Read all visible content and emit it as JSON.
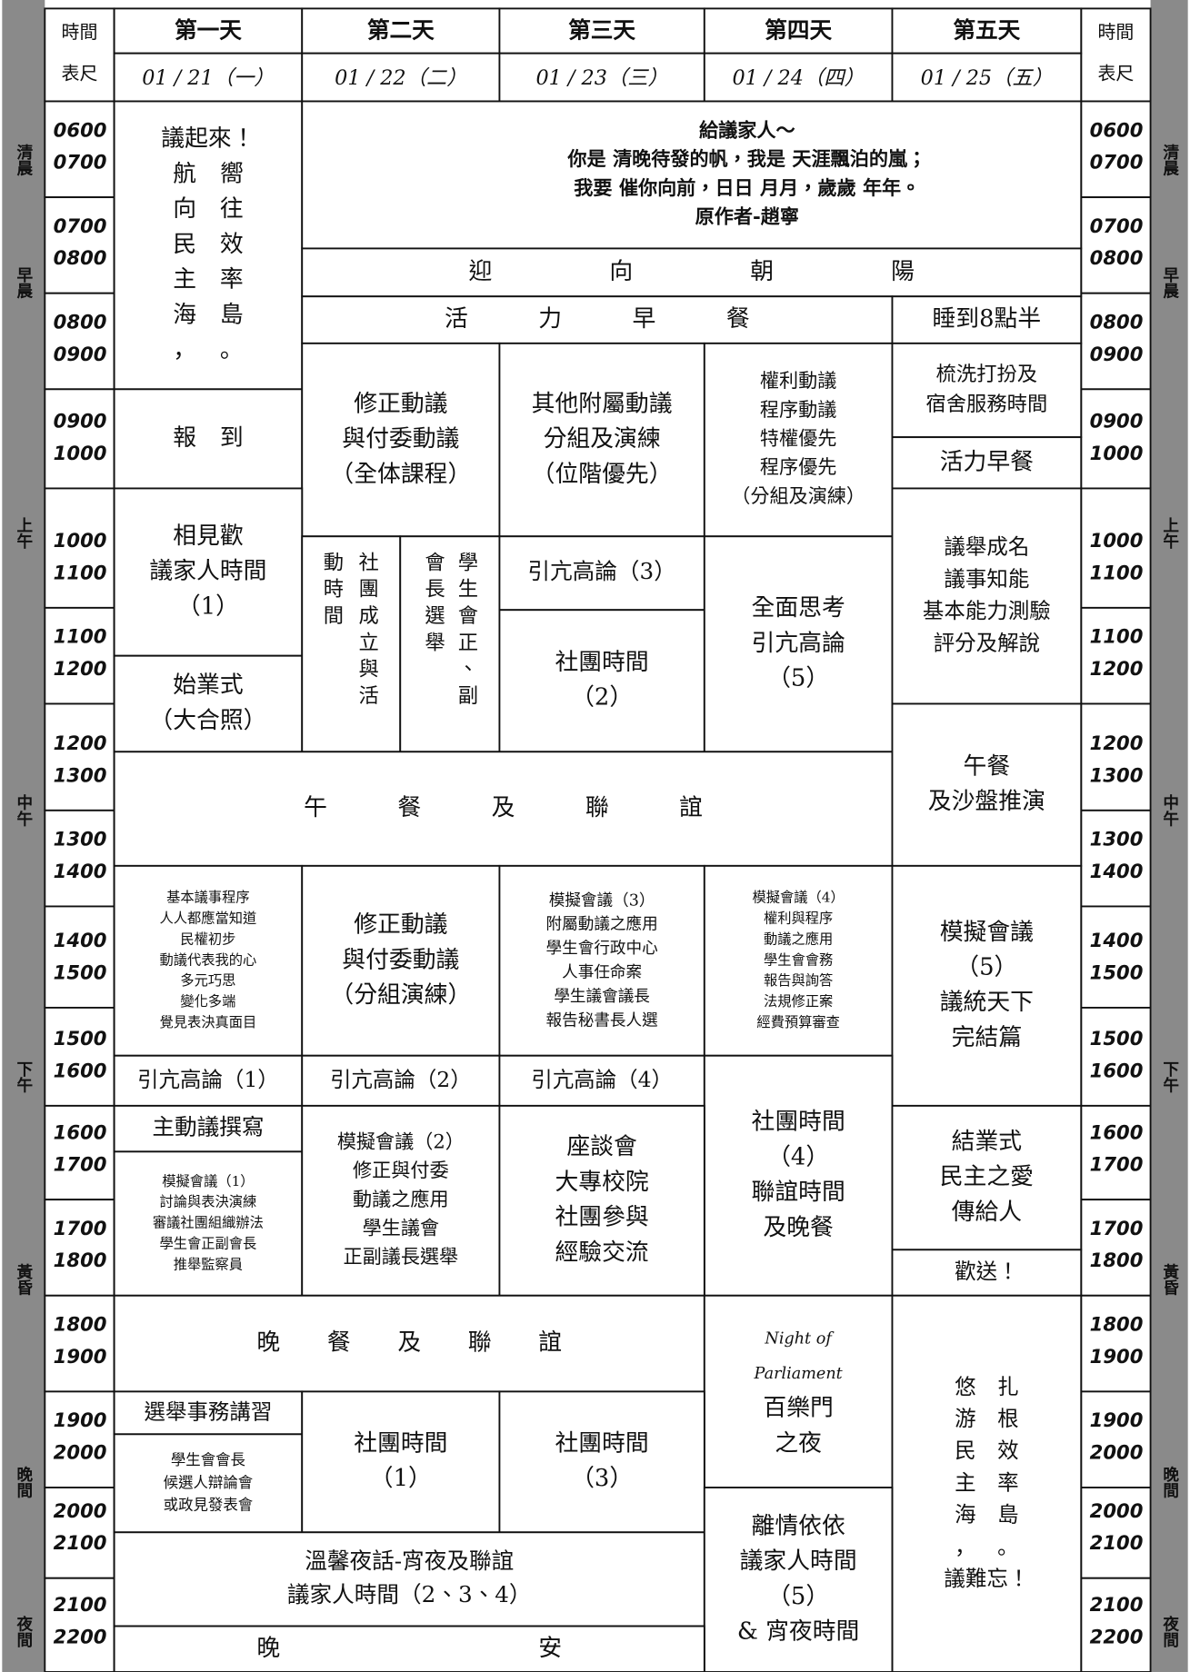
{
  "header": {
    "time_label": [
      "時間",
      "表尺"
    ],
    "days": [
      {
        "name": "第一天",
        "date": "01 / 21（一）"
      },
      {
        "name": "第二天",
        "date": "01 / 22（二）"
      },
      {
        "name": "第三天",
        "date": "01 / 23（三）"
      },
      {
        "name": "第四天",
        "date": "01 / 24（四）"
      },
      {
        "name": "第五天",
        "date": "01 / 25（五）"
      }
    ]
  },
  "time_rows": [
    [
      "0600",
      "0700"
    ],
    [
      "0700",
      "0800"
    ],
    [
      "0800",
      "0900"
    ],
    [
      "0900",
      "1000"
    ],
    [
      "1000",
      "1100"
    ],
    [
      "1100",
      "1200"
    ],
    [
      "1200",
      "1300"
    ],
    [
      "1300",
      "1400"
    ],
    [
      "1400",
      "1500"
    ],
    [
      "1500",
      "1600"
    ],
    [
      "1600",
      "1700"
    ],
    [
      "1700",
      "1800"
    ],
    [
      "1800",
      "1900"
    ],
    [
      "1900",
      "2000"
    ],
    [
      "2000",
      "2100"
    ],
    [
      "2100",
      "2200"
    ]
  ],
  "periods": [
    "清晨",
    "早晨",
    "上午",
    "中午",
    "下午",
    "黃昏",
    "晚間",
    "夜間"
  ],
  "cells": [
    {
      "lines": [
        "議起來！",
        "航　嚮",
        "向　往",
        "民　效",
        "主　率",
        "海　島",
        "，　。"
      ]
    },
    {
      "lines": [
        "給議家人～",
        "你是 清晚待發的帆，我是 天涯飄泊的嵐；",
        "我要 催你向前，日日 月月，歲歲 年年。",
        "原作者-趙寧"
      ]
    },
    {
      "lines": [
        "迎　　　　　向　　　　　朝　　　　　陽"
      ]
    },
    {
      "lines": [
        "活　　　力　　　早　　　餐"
      ]
    },
    {
      "lines": [
        "睡到8點半"
      ]
    },
    {
      "lines": [
        "報　到"
      ]
    },
    {
      "lines": [
        "修正動議",
        "與付委動議",
        "（全体課程）"
      ]
    },
    {
      "lines": [
        "其他附屬動議",
        "分組及演練",
        "（位階優先）"
      ]
    },
    {
      "lines": [
        "權利動議",
        "程序動議",
        "特權優先",
        "程序優先",
        "（分組及演練）"
      ]
    },
    {
      "lines": [
        "梳洗打扮及",
        "宿舍服務時間"
      ]
    },
    {
      "lines": [
        "活力早餐"
      ]
    },
    {
      "lines": [
        "相見歡",
        "議家人時間",
        "（1）"
      ]
    },
    {
      "lines": [
        "始業式",
        "（大合照）"
      ]
    },
    {
      "lines": [
        "社團成立與活",
        "動時間"
      ]
    },
    {
      "lines": [
        "學生會正、副",
        "會長選舉"
      ]
    },
    {
      "lines": [
        "引亢高論（3）"
      ]
    },
    {
      "lines": [
        "社團時間",
        "（2）"
      ]
    },
    {
      "lines": [
        "全面思考",
        "引亢高論",
        "（5）"
      ]
    },
    {
      "lines": [
        "議舉成名",
        "議事知能",
        "基本能力測驗",
        "評分及解說"
      ]
    },
    {
      "lines": [
        "午　　　餐　　　及　　　聯　　　誼"
      ]
    },
    {
      "lines": [
        "午餐",
        "及沙盤推演"
      ]
    },
    {
      "lines": [
        "基本議事程序",
        "人人都應當知道",
        "民權初步",
        "動議代表我的心",
        "多元巧思",
        "變化多端",
        "覺見表決真面目"
      ]
    },
    {
      "lines": [
        "修正動議",
        "與付委動議",
        "（分組演練）"
      ]
    },
    {
      "lines": [
        "模擬會議（3）",
        "附屬動議之應用",
        "學生會行政中心",
        "人事任命案",
        "學生議會議長",
        "報告秘書長人選"
      ]
    },
    {
      "lines": [
        "模擬會議（4）",
        "權利與程序",
        "動議之應用",
        "學生會會務",
        "報告與詢答",
        "法規修正案",
        "經費預算審查"
      ]
    },
    {
      "lines": [
        "模擬會議",
        "（5）",
        "議統天下",
        "完結篇"
      ]
    },
    {
      "lines": [
        "引亢高論（1）"
      ]
    },
    {
      "lines": [
        "引亢高論（2）"
      ]
    },
    {
      "lines": [
        "引亢高論（4）"
      ]
    },
    {
      "lines": [
        "社團時間",
        "（4）",
        "聯誼時間",
        "及晚餐"
      ]
    },
    {
      "lines": [
        "主動議撰寫"
      ]
    },
    {
      "lines": [
        "模擬會議（1）",
        "討論與表決演練",
        "審議社團組織辦法",
        "學生會正副會長",
        "推舉監察員"
      ]
    },
    {
      "lines": [
        "模擬會議（2）",
        "修正與付委",
        "動議之應用",
        "學生議會",
        "正副議長選舉"
      ]
    },
    {
      "lines": [
        "座談會",
        "大專校院",
        "社團參與",
        "經驗交流"
      ]
    },
    {
      "lines": [
        "結業式",
        "民主之愛",
        "傳給人"
      ]
    },
    {
      "lines": [
        "歡送！"
      ]
    },
    {
      "lines": [
        "晚　　餐　　及　　聯　　誼"
      ]
    },
    {
      "lines": [
        "Night of",
        "Parliament",
        "百樂門",
        "之夜"
      ]
    },
    {
      "lines": [
        "悠　扎",
        "游　根",
        "民　效",
        "主　率",
        "海　島",
        "，　。",
        "議難忘！"
      ]
    },
    {
      "lines": [
        "選舉事務講習"
      ]
    },
    {
      "lines": [
        "學生會會長",
        "候選人辯論會",
        "或政見發表會"
      ]
    },
    {
      "lines": [
        "社團時間",
        "（1）"
      ]
    },
    {
      "lines": [
        "社團時間",
        "（3）"
      ]
    },
    {
      "lines": [
        "溫馨夜話-宵夜及聯誼",
        "議家人時間（2、3、4）"
      ]
    },
    {
      "lines": [
        "離情依依",
        "議家人時間",
        "（5）",
        "& 宵夜時間"
      ]
    },
    {
      "lines": [
        "晚　　　　　　　　　　　安"
      ]
    }
  ]
}
